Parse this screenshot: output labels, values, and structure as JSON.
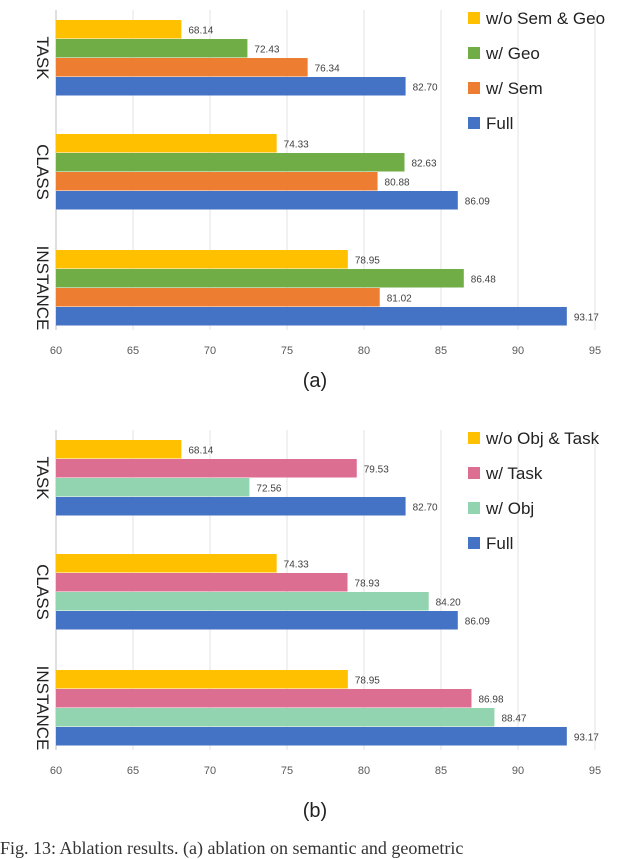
{
  "chart_data": [
    {
      "type": "bar",
      "orientation": "horizontal",
      "categories": [
        "TASK",
        "CLASS",
        "INSTANCE"
      ],
      "series": [
        {
          "name": "w/o Sem & Geo",
          "color": "#ffc000",
          "values": [
            68.14,
            74.33,
            78.95
          ]
        },
        {
          "name": "w/ Geo",
          "color": "#70ad47",
          "values": [
            72.43,
            82.63,
            86.48
          ]
        },
        {
          "name": "w/ Sem",
          "color": "#ed7d31",
          "values": [
            76.34,
            80.88,
            81.02
          ]
        },
        {
          "name": "Full",
          "color": "#4472c4",
          "values": [
            82.7,
            86.09,
            93.17
          ]
        }
      ],
      "value_labels": [
        [
          "68.14",
          "74.33",
          "78.95"
        ],
        [
          "72.43",
          "82.63",
          "86.48"
        ],
        [
          "76.34",
          "80.88",
          "81.02"
        ],
        [
          "82.70",
          "86.09",
          "93.17"
        ]
      ],
      "xlim": [
        60,
        95
      ],
      "xticks": [
        "60",
        "65",
        "70",
        "75",
        "80",
        "85",
        "90",
        "95"
      ],
      "legend_position": "top-right",
      "sublabel": "(a)"
    },
    {
      "type": "bar",
      "orientation": "horizontal",
      "categories": [
        "TASK",
        "CLASS",
        "INSTANCE"
      ],
      "series": [
        {
          "name": "w/o Obj & Task",
          "color": "#ffc000",
          "values": [
            68.14,
            74.33,
            78.95
          ]
        },
        {
          "name": "w/ Task",
          "color": "#dc6e91",
          "values": [
            79.53,
            78.93,
            86.98
          ]
        },
        {
          "name": "w/ Obj",
          "color": "#92d3b0",
          "values": [
            72.56,
            84.2,
            88.47
          ]
        },
        {
          "name": "Full",
          "color": "#4472c4",
          "values": [
            82.7,
            86.09,
            93.17
          ]
        }
      ],
      "value_labels": [
        [
          "68.14",
          "74.33",
          "78.95"
        ],
        [
          "79.53",
          "78.93",
          "86.98"
        ],
        [
          "72.56",
          "84.20",
          "88.47"
        ],
        [
          "82.70",
          "86.09",
          "93.17"
        ]
      ],
      "xlim": [
        60,
        95
      ],
      "xticks": [
        "60",
        "65",
        "70",
        "75",
        "80",
        "85",
        "90",
        "95"
      ],
      "legend_position": "top-right",
      "sublabel": "(b)"
    }
  ],
  "caption": "Fig. 13: Ablation results. (a) ablation on semantic and geometric"
}
